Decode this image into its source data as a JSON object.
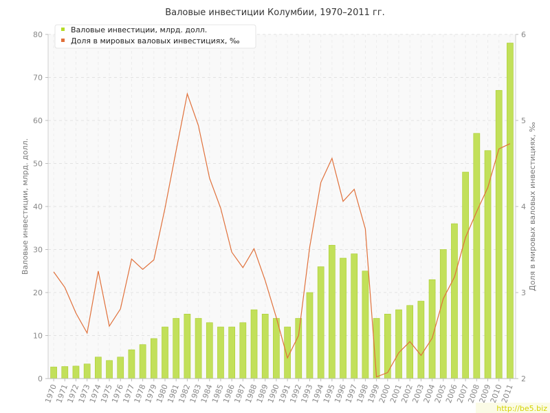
{
  "chart_data": {
    "type": "bar",
    "title": "Валовые инвестиции Колумбии, 1970–2011 гг.",
    "categories": [
      "1970",
      "1971",
      "1972",
      "1973",
      "1974",
      "1975",
      "1976",
      "1977",
      "1978",
      "1979",
      "1980",
      "1981",
      "1982",
      "1983",
      "1984",
      "1985",
      "1986",
      "1987",
      "1988",
      "1989",
      "1990",
      "1991",
      "1992",
      "1993",
      "1994",
      "1995",
      "1996",
      "1997",
      "1998",
      "1999",
      "2000",
      "2001",
      "2002",
      "2003",
      "2004",
      "2005",
      "2006",
      "2007",
      "2008",
      "2009",
      "2010",
      "2011"
    ],
    "ylabel": "Валовые инвестиции, млрд. долл.",
    "y2label": "Доля в мировых валовых инвестициях, ‰",
    "ylim": [
      0,
      80
    ],
    "y2lim": [
      2,
      6
    ],
    "yticks": [
      0,
      10,
      20,
      30,
      40,
      50,
      60,
      70,
      80
    ],
    "y2ticks": [
      2,
      3,
      4,
      5,
      6
    ],
    "grid": true,
    "legend_position": "top-left",
    "series": [
      {
        "name": "Валовые инвестиции, млрд. долл.",
        "type": "bar",
        "color": "#c2e05a",
        "axis": "left",
        "values": [
          2.7,
          2.8,
          2.9,
          3.4,
          5.0,
          4.2,
          5.0,
          6.7,
          7.9,
          9.3,
          12.0,
          14.0,
          15.0,
          14.0,
          13.0,
          12.0,
          12.0,
          13.0,
          16.0,
          15.0,
          14.0,
          12.0,
          14.0,
          20.0,
          26.0,
          31.0,
          28.0,
          29.0,
          25.0,
          14.0,
          15.0,
          16.0,
          17.0,
          18.0,
          23.0,
          30.0,
          36.0,
          48.0,
          57.0,
          53.0,
          67.0,
          78.0
        ]
      },
      {
        "name": "Доля в мировых валовых инвестициях, ‰",
        "type": "line",
        "color": "#e0703a",
        "axis": "right",
        "values": [
          3.24,
          3.06,
          2.76,
          2.53,
          3.25,
          2.61,
          2.81,
          3.39,
          3.27,
          3.38,
          3.98,
          4.65,
          5.31,
          4.94,
          4.33,
          3.98,
          3.47,
          3.29,
          3.51,
          3.14,
          2.71,
          2.24,
          2.5,
          3.53,
          4.28,
          4.56,
          4.06,
          4.2,
          3.74,
          2.02,
          2.07,
          2.3,
          2.43,
          2.27,
          2.47,
          2.93,
          3.18,
          3.64,
          3.94,
          4.22,
          4.67,
          4.73
        ]
      }
    ]
  },
  "watermark": "http://be5.biz"
}
